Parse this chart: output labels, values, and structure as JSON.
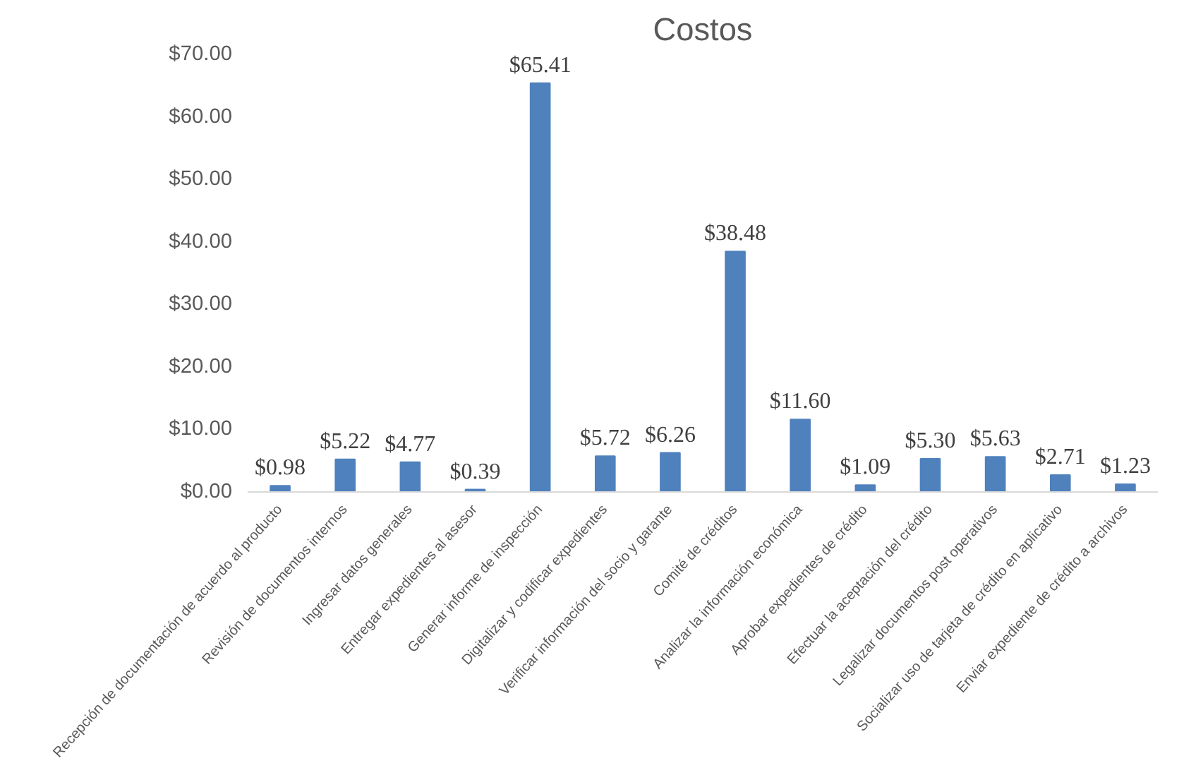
{
  "chart_data": {
    "type": "bar",
    "title": "Costos",
    "categories": [
      "Recepción de documentación de acuerdo al producto",
      "Revisión de documentos internos",
      "Ingresar datos generales",
      "Entregar expedientes al asesor",
      "Generar informe de inspección",
      "Digitalizar y codificar expedientes",
      "Verificar información del socio y garante",
      "Comité de créditos",
      "Analizar la información económica",
      "Aprobar expedientes de crédito",
      "Efectuar la aceptación del crédito",
      "Legalizar documentos post operativos",
      "Socializar uso de tarjeta de crédito en aplicativo",
      "Enviar expediente de crédito a archivos"
    ],
    "values": [
      0.98,
      5.22,
      4.77,
      0.39,
      65.41,
      5.72,
      6.26,
      38.48,
      11.6,
      1.09,
      5.3,
      5.63,
      2.71,
      1.23
    ],
    "value_labels": [
      "$0.98",
      "$5.22",
      "$4.77",
      "$0.39",
      "$65.41",
      "$5.72",
      "$6.26",
      "$38.48",
      "$11.60",
      "$1.09",
      "$5.30",
      "$5.63",
      "$2.71",
      "$1.23"
    ],
    "color": "#4f81bd",
    "ylim": [
      0,
      70
    ],
    "yticks": [
      {
        "value": 0,
        "label": "$0.00"
      },
      {
        "value": 10,
        "label": "$10.00"
      },
      {
        "value": 20,
        "label": "$20.00"
      },
      {
        "value": 30,
        "label": "$30.00"
      },
      {
        "value": 40,
        "label": "$40.00"
      },
      {
        "value": 50,
        "label": "$50.00"
      },
      {
        "value": 60,
        "label": "$60.00"
      },
      {
        "value": 70,
        "label": "$70.00"
      }
    ],
    "grid": false
  }
}
